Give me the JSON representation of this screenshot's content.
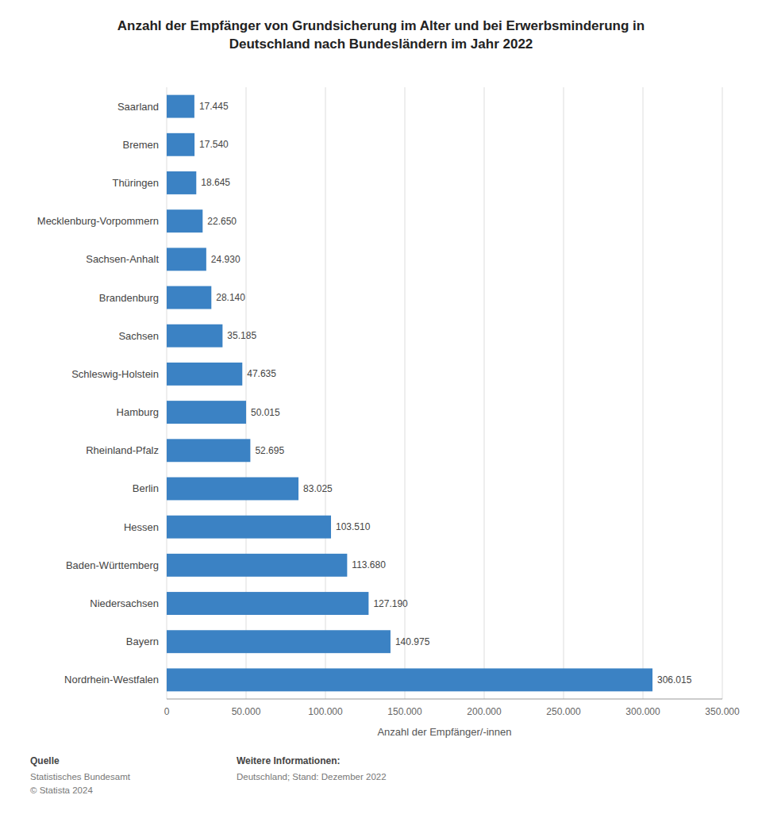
{
  "chart_data": {
    "type": "bar",
    "orientation": "horizontal",
    "title": "Anzahl der Empfänger von Grundsicherung im Alter und bei Erwerbsminderung in\nDeutschland nach Bundesländern im Jahr 2022",
    "categories": [
      "Saarland",
      "Bremen",
      "Thüringen",
      "Mecklenburg-Vorpommern",
      "Sachsen-Anhalt",
      "Brandenburg",
      "Sachsen",
      "Schleswig-Holstein",
      "Hamburg",
      "Rheinland-Pfalz",
      "Berlin",
      "Hessen",
      "Baden-Württemberg",
      "Niedersachsen",
      "Bayern",
      "Nordrhein-Westfalen"
    ],
    "values": [
      17445,
      17540,
      18645,
      22650,
      24930,
      28140,
      35185,
      47635,
      50015,
      52695,
      83025,
      103510,
      113680,
      127190,
      140975,
      306015
    ],
    "value_labels": [
      "17.445",
      "17.540",
      "18.645",
      "22.650",
      "24.930",
      "28.140",
      "35.185",
      "47.635",
      "50.015",
      "52.695",
      "83.025",
      "103.510",
      "113.680",
      "127.190",
      "140.975",
      "306.015"
    ],
    "data_labels": true,
    "color": "#3b82c4",
    "xlabel": "Anzahl der Empfänger/-innen",
    "xlim": [
      0,
      350000
    ],
    "xticks": [
      0,
      {
        "value": 50000,
        "label": "50.000"
      },
      {
        "value": 100000,
        "label": "100.000"
      },
      {
        "value": 150000,
        "label": "150.000"
      },
      {
        "value": 200000,
        "label": "200.000"
      },
      {
        "value": 250000,
        "label": "250.000"
      },
      {
        "value": 300000,
        "label": "300.000"
      },
      {
        "value": 350000,
        "label": "350.000"
      }
    ],
    "grid": true,
    "annotations": [
      "Quelle",
      "Statistisches Bundesamt\n© Statista 2024",
      "Weitere Informationen:",
      "Deutschland; Stand: Dezember 2022"
    ]
  }
}
